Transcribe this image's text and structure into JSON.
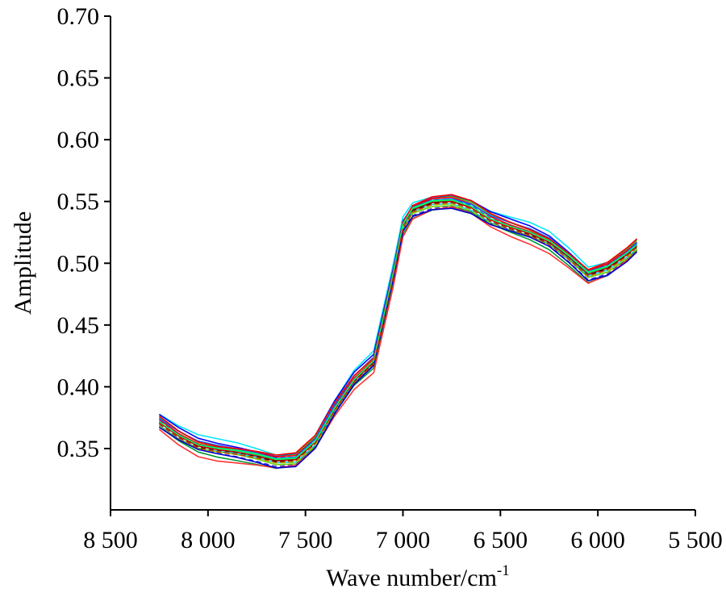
{
  "chart_data": {
    "type": "line",
    "title": "",
    "xlabel": "Wave number/cm",
    "xlabel_superscript": "-1",
    "ylabel": "Amplitude",
    "xlim": [
      8500,
      5500
    ],
    "x_reversed": true,
    "ylim": [
      0.3,
      0.7
    ],
    "grid": false,
    "legend": "none",
    "x_ticks": [
      8500,
      8000,
      7500,
      7000,
      6500,
      6000,
      5500
    ],
    "x_tick_labels": [
      "8 500",
      "8 000",
      "7 500",
      "7 000",
      "6 500",
      "6 000",
      "5 500"
    ],
    "y_ticks": [
      0.35,
      0.4,
      0.45,
      0.5,
      0.55,
      0.6,
      0.65,
      0.7
    ],
    "y_tick_labels": [
      "0.35",
      "0.40",
      "0.45",
      "0.50",
      "0.55",
      "0.60",
      "0.65",
      "0.70"
    ],
    "x": [
      8250,
      8150,
      8050,
      7950,
      7850,
      7750,
      7650,
      7550,
      7450,
      7350,
      7250,
      7150,
      7050,
      7000,
      6950,
      6850,
      6750,
      6650,
      6550,
      6450,
      6350,
      6250,
      6150,
      6050,
      5950,
      5850,
      5800
    ],
    "series_mean": [
      0.371,
      0.36,
      0.352,
      0.349,
      0.347,
      0.344,
      0.34,
      0.341,
      0.355,
      0.382,
      0.405,
      0.42,
      0.49,
      0.53,
      0.543,
      0.549,
      0.55,
      0.545,
      0.535,
      0.529,
      0.524,
      0.517,
      0.505,
      0.491,
      0.496,
      0.507,
      0.514
    ],
    "series_offsets": [
      0.008,
      0.006,
      0.004,
      0.003,
      0.002,
      0.001,
      0.0,
      -0.001,
      -0.002,
      -0.003,
      -0.004,
      -0.006,
      -0.008,
      0.0035,
      -0.0025,
      0.005,
      -0.005,
      0.0015,
      -0.0015
    ],
    "series_colors": [
      "#00e5ff",
      "#0000ff",
      "#33cc33",
      "#ff0000",
      "#1a1aff",
      "#00cc66",
      "#cc0000",
      "#000000",
      "#00ccff",
      "#66cc00",
      "#3333cc",
      "#009933",
      "#ff3333",
      "#0066ff",
      "#99cc00",
      "#ff0000",
      "#0000cc",
      "#00ff66",
      "#cc3300"
    ],
    "series_dashed": [
      false,
      false,
      false,
      false,
      true,
      false,
      false,
      true,
      false,
      false,
      true,
      false,
      false,
      false,
      true,
      false,
      false,
      false,
      true
    ]
  }
}
